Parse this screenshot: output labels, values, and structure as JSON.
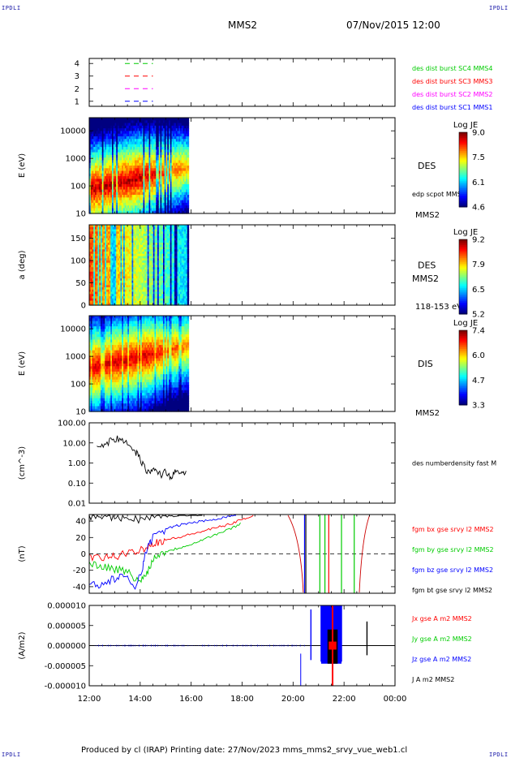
{
  "corner_labels": {
    "tl": "IPDLI",
    "tr": "IPDLI",
    "bl": "IPDLI",
    "br": "IPDLI"
  },
  "header": {
    "spacecraft": "MMS2",
    "datetime": "07/Nov/2015 12:00"
  },
  "footer": {
    "text": "Produced by cl (IRAP)   Printing date: 27/Nov/2023   mms_mms2_srvy_vue_web1.cl"
  },
  "colors": {
    "red": "#ff0000",
    "green": "#00cc00",
    "blue": "#0000ff",
    "magenta": "#ff00ff",
    "black": "#000000"
  },
  "time_axis": {
    "ticks": [
      "12:00",
      "14:00",
      "16:00",
      "18:00",
      "20:00",
      "22:00",
      "00:00"
    ]
  },
  "chart_data": [
    {
      "id": "burst",
      "type": "line",
      "ylim": [
        0.6,
        4.4
      ],
      "yticks": [
        "1",
        "2",
        "3",
        "4"
      ],
      "legend": [
        {
          "label": "des dist burst SC1 MMS1",
          "color": "#0000ff",
          "y": 1
        },
        {
          "label": "des dist burst SC2 MMS2",
          "color": "#ff00ff",
          "y": 2
        },
        {
          "label": "des dist burst SC3 MMS3",
          "color": "#ff0000",
          "y": 3
        },
        {
          "label": "des dist burst SC4 MMS4",
          "color": "#00cc00",
          "y": 4
        }
      ],
      "x_start_hour": 13.4,
      "x_end_hour": 14.5
    },
    {
      "id": "des-energy",
      "type": "heatmap",
      "ylabel": "E (eV)",
      "yscale": "log",
      "ylim": [
        10,
        30000
      ],
      "yticks": [
        "10",
        "100",
        "1000",
        "10000"
      ],
      "ytick_values": [
        10,
        100,
        1000,
        10000
      ],
      "data_end_hour": 15.9,
      "instrument": "DES",
      "extra_label": "edp scpot MMS2",
      "bottom_label": "MMS2",
      "colorbar": {
        "title": "Log JE",
        "ticks": [
          "9.0",
          "7.5",
          "6.1",
          "4.6"
        ]
      }
    },
    {
      "id": "des-pitch",
      "type": "heatmap",
      "ylabel": "a (deg)",
      "ylim": [
        0,
        180
      ],
      "yticks": [
        "0",
        "50",
        "100",
        "150"
      ],
      "ytick_values": [
        0,
        50,
        100,
        150
      ],
      "data_end_hour": 15.9,
      "instrument": "DES",
      "extra_label": "MMS2",
      "bottom_label": "118-153 eV",
      "colorbar": {
        "title": "Log JE",
        "ticks": [
          "9.2",
          "7.9",
          "6.5",
          "5.2"
        ]
      }
    },
    {
      "id": "dis-energy",
      "type": "heatmap",
      "ylabel": "E (eV)",
      "yscale": "log",
      "ylim": [
        10,
        30000
      ],
      "yticks": [
        "10",
        "100",
        "1000",
        "10000"
      ],
      "ytick_values": [
        10,
        100,
        1000,
        10000
      ],
      "data_end_hour": 15.9,
      "instrument": "DIS",
      "extra_label": "",
      "bottom_label": "MMS2",
      "colorbar": {
        "title": "Log JE",
        "ticks": [
          "7.4",
          "6.0",
          "4.7",
          "3.3"
        ]
      }
    },
    {
      "id": "density",
      "type": "line",
      "ylabel": "(cm^-3)",
      "yscale": "log",
      "ylim": [
        0.01,
        100
      ],
      "yticks": [
        "0.01",
        "0.10",
        "1.00",
        "10.00",
        "100.00"
      ],
      "ytick_values": [
        0.01,
        0.1,
        1,
        10,
        100
      ],
      "legend": [
        {
          "label": "des numberdensity fast M",
          "color": "#000000"
        }
      ],
      "x": [
        12.3,
        12.6,
        12.9,
        13.2,
        13.5,
        13.8,
        14.0,
        14.2,
        14.4,
        14.6,
        14.8,
        15.0,
        15.2,
        15.4,
        15.6,
        15.8
      ],
      "y": [
        7,
        9,
        14,
        17,
        8,
        4,
        1.5,
        0.5,
        0.3,
        0.5,
        0.25,
        0.4,
        0.2,
        0.35,
        0.3,
        0.4
      ]
    },
    {
      "id": "magnetic-field",
      "type": "line",
      "ylabel": "(nT)",
      "ylim": [
        -48,
        48
      ],
      "yticks": [
        "-40",
        "-20",
        "0",
        "20",
        "40"
      ],
      "ytick_values": [
        -40,
        -20,
        0,
        20,
        40
      ],
      "legend": [
        {
          "label": "fgm bx gse srvy l2 MMS2",
          "color": "#ff0000"
        },
        {
          "label": "fgm by gse srvy l2 MMS2",
          "color": "#00cc00"
        },
        {
          "label": "fgm bz gse srvy l2 MMS2",
          "color": "#0000ff"
        },
        {
          "label": "fgm bt gse srvy l2 MMS2",
          "color": "#000000"
        }
      ],
      "series": [
        {
          "name": "fgm bx gse srvy l2 MMS2",
          "color": "#ff0000",
          "x": [
            12.0,
            12.5,
            13.0,
            13.5,
            14.0,
            14.3,
            14.6,
            15.0,
            15.5,
            16.0,
            16.5,
            17.0,
            17.5,
            18.0,
            18.5
          ],
          "y": [
            -5,
            -5,
            -3,
            0,
            5,
            10,
            14,
            17,
            20,
            24,
            28,
            32,
            36,
            42,
            48
          ]
        },
        {
          "name": "fgm by gse srvy l2 MMS2",
          "color": "#00cc00",
          "x": [
            12.0,
            12.5,
            13.0,
            13.5,
            14.0,
            14.3,
            14.6,
            15.0,
            15.5,
            16.0,
            16.5,
            17.0,
            17.5,
            18.0
          ],
          "y": [
            -12,
            -15,
            -18,
            -22,
            -35,
            -20,
            -2,
            3,
            7,
            12,
            18,
            24,
            30,
            38
          ]
        },
        {
          "name": "fgm bz gse srvy l2 MMS2",
          "color": "#0000ff",
          "x": [
            12.0,
            12.5,
            13.0,
            13.4,
            13.8,
            14.1,
            14.3,
            14.5,
            15.0,
            15.5,
            16.0,
            16.5,
            17.0,
            17.5,
            17.8
          ],
          "y": [
            -35,
            -38,
            -30,
            -28,
            -40,
            -15,
            10,
            20,
            30,
            35,
            38,
            40,
            43,
            46,
            48
          ]
        },
        {
          "name": "fgm bt gse srvy l2 MMS2",
          "color": "#000000",
          "x": [
            12.0,
            12.5,
            13.0,
            13.5,
            14.0,
            14.5,
            15.0,
            15.5,
            16.0,
            16.5
          ],
          "y": [
            46,
            47,
            45,
            44,
            42,
            45,
            46,
            47,
            48,
            48
          ]
        }
      ]
    },
    {
      "id": "current-density",
      "type": "line",
      "ylabel": "(A/m2)",
      "ylim": [
        -1e-05,
        1e-05
      ],
      "yticks": [
        "-0.000010",
        "-0.000005",
        "0.000000",
        "0.000005",
        "0.000010"
      ],
      "ytick_values": [
        -1e-05,
        -5e-06,
        0,
        5e-06,
        1e-05
      ],
      "legend": [
        {
          "label": "Jx gse A m2 MMS2",
          "color": "#ff0000"
        },
        {
          "label": "Jy gse A m2 MMS2",
          "color": "#00cc00"
        },
        {
          "label": "Jz gse A m2 MMS2",
          "color": "#0000ff"
        },
        {
          "label": "J A m2 MMS2",
          "color": "#000000"
        }
      ],
      "spikes": [
        {
          "hour": 20.7,
          "amplitude": 9e-06,
          "color": "#0000ff"
        },
        {
          "hour": 21.1,
          "amplitude": 1e-05,
          "color": "#0000ff"
        },
        {
          "hour": 21.9,
          "amplitude": 1e-05,
          "color": "#0000ff"
        },
        {
          "hour": 22.9,
          "amplitude": 6e-06,
          "color": "#000000"
        }
      ]
    }
  ]
}
